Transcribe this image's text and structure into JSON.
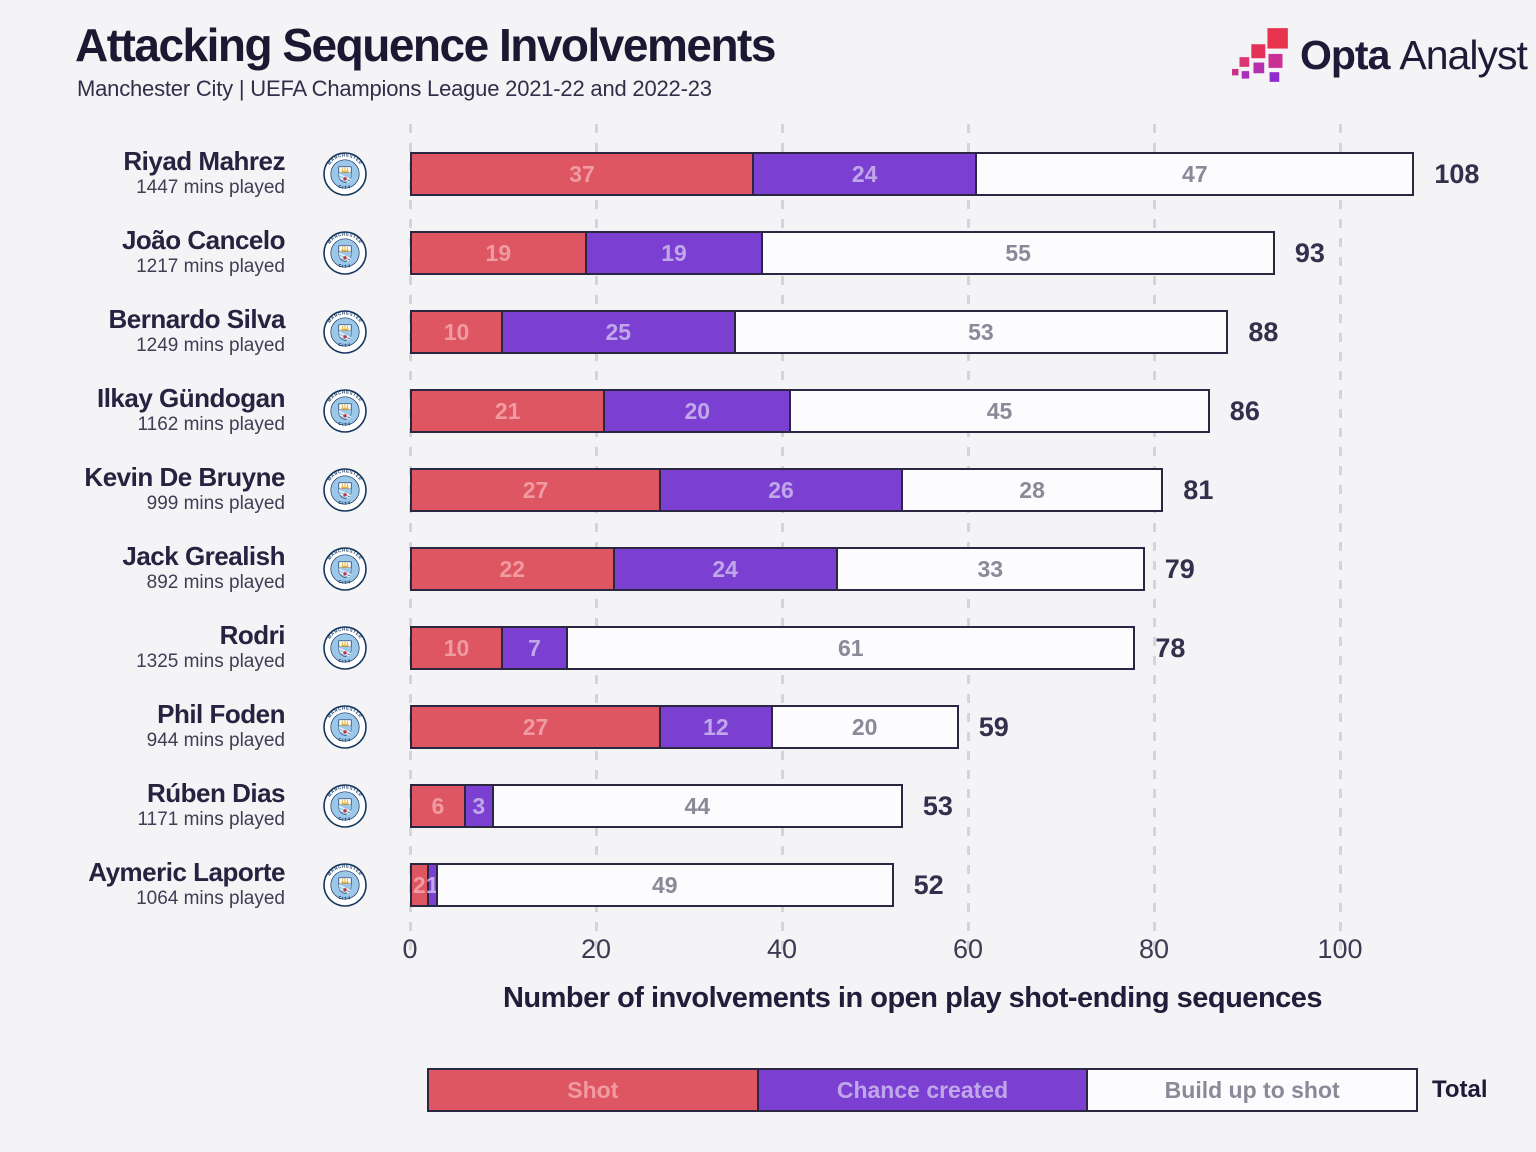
{
  "header": {
    "title": "Attacking Sequence Involvements",
    "subtitle": "Manchester City | UEFA Champions League 2021-22 and 2022-23"
  },
  "brand": {
    "name_bold": "Opta",
    "name_light": "Analyst"
  },
  "chart_data": {
    "type": "bar",
    "orientation": "horizontal",
    "stacked": true,
    "title": "Attacking Sequence Involvements",
    "xlabel": "Number of involvements in open play shot-ending sequences",
    "xlim": [
      0,
      110
    ],
    "xticks": [
      0,
      20,
      40,
      60,
      80,
      100
    ],
    "grid": "dashed-vertical",
    "series_keys": [
      "shot",
      "chance_created",
      "build_up_to_shot"
    ],
    "players": [
      {
        "name": "Riyad Mahrez",
        "mins": "1447 mins played",
        "shot": 37,
        "chance_created": 24,
        "build_up_to_shot": 47,
        "total": 108
      },
      {
        "name": "João Cancelo",
        "mins": "1217 mins played",
        "shot": 19,
        "chance_created": 19,
        "build_up_to_shot": 55,
        "total": 93
      },
      {
        "name": "Bernardo Silva",
        "mins": "1249 mins played",
        "shot": 10,
        "chance_created": 25,
        "build_up_to_shot": 53,
        "total": 88
      },
      {
        "name": "Ilkay Gündogan",
        "mins": "1162 mins played",
        "shot": 21,
        "chance_created": 20,
        "build_up_to_shot": 45,
        "total": 86
      },
      {
        "name": "Kevin De Bruyne",
        "mins": "999 mins played",
        "shot": 27,
        "chance_created": 26,
        "build_up_to_shot": 28,
        "total": 81
      },
      {
        "name": "Jack Grealish",
        "mins": "892 mins played",
        "shot": 22,
        "chance_created": 24,
        "build_up_to_shot": 33,
        "total": 79
      },
      {
        "name": "Rodri",
        "mins": "1325 mins played",
        "shot": 10,
        "chance_created": 7,
        "build_up_to_shot": 61,
        "total": 78
      },
      {
        "name": "Phil Foden",
        "mins": "944 mins played",
        "shot": 27,
        "chance_created": 12,
        "build_up_to_shot": 20,
        "total": 59
      },
      {
        "name": "Rúben Dias",
        "mins": "1171 mins played",
        "shot": 6,
        "chance_created": 3,
        "build_up_to_shot": 44,
        "total": 53
      },
      {
        "name": "Aymeric Laporte",
        "mins": "1064 mins played",
        "shot": 2,
        "chance_created": 1,
        "build_up_to_shot": 49,
        "total": 52
      }
    ],
    "legend": [
      {
        "label": "Shot",
        "color": "#dd5662",
        "text_color": "#f09aa1"
      },
      {
        "label": "Chance created",
        "color": "#7b40d2",
        "text_color": "#c0a7e9"
      },
      {
        "label": "Build up to shot",
        "color": "#fcfbfd",
        "text_color": "#8b8997"
      }
    ],
    "total_label": "Total",
    "legend_position": "bottom"
  },
  "colors": {
    "background": "#f4f3f5",
    "bar_border": "#2b2742",
    "gridline": "#d6d4da",
    "title_text": "#1b1831",
    "total_text": "#332f4c",
    "badge_navy": "#14365f",
    "badge_blue": "#9dc7e8"
  },
  "badge": {
    "club_top": "MANCHESTER",
    "club_bottom": "CITY"
  }
}
